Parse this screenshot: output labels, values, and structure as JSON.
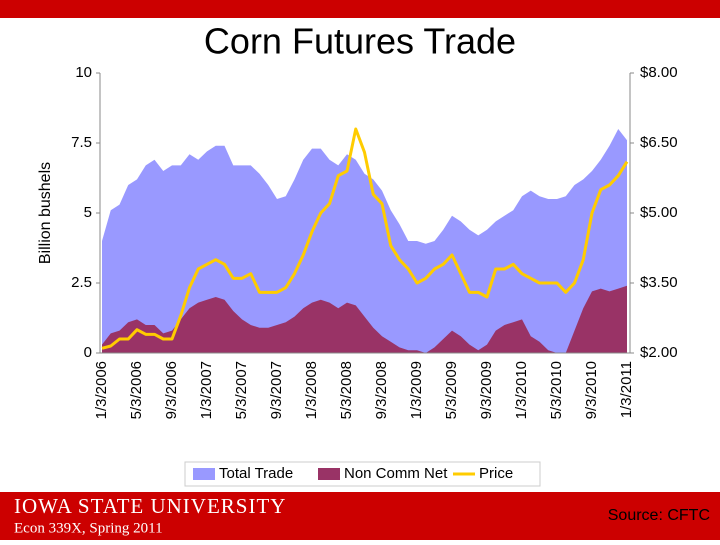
{
  "chart_data": {
    "type": "area",
    "title": "Corn Futures Trade",
    "y_label": "Billion bushels",
    "categories": [
      "1/3/2006",
      null,
      null,
      null,
      "5/3/2006",
      null,
      null,
      null,
      "9/3/2006",
      null,
      null,
      null,
      "1/3/2007",
      null,
      null,
      null,
      "5/3/2007",
      null,
      null,
      null,
      "9/3/2007",
      null,
      null,
      null,
      "1/3/2008",
      null,
      null,
      null,
      "5/3/2008",
      null,
      null,
      null,
      "9/3/2008",
      null,
      null,
      null,
      "1/3/2009",
      null,
      null,
      null,
      "5/3/2009",
      null,
      null,
      null,
      "9/3/2009",
      null,
      null,
      null,
      "1/3/2010",
      null,
      null,
      null,
      "5/3/2010",
      null,
      null,
      null,
      "9/3/2010",
      null,
      null,
      null,
      "1/3/2011"
    ],
    "series": [
      {
        "name": "Total Trade",
        "color": "#9999ff",
        "kind": "area",
        "values": [
          4.0,
          5.1,
          5.3,
          6.0,
          6.2,
          6.7,
          6.9,
          6.5,
          6.7,
          6.7,
          7.1,
          6.9,
          7.2,
          7.4,
          7.4,
          6.7,
          6.7,
          6.7,
          6.4,
          6.0,
          5.5,
          5.6,
          6.2,
          6.9,
          7.3,
          7.3,
          6.9,
          6.7,
          7.1,
          6.9,
          6.4,
          6.2,
          5.8,
          5.1,
          4.6,
          4.0,
          4.0,
          3.9,
          4.0,
          4.4,
          4.9,
          4.7,
          4.4,
          4.2,
          4.4,
          4.7,
          4.9,
          5.1,
          5.6,
          5.8,
          5.6,
          5.5,
          5.5,
          5.6,
          6.0,
          6.2,
          6.5,
          6.9,
          7.4,
          8.0,
          7.6
        ]
      },
      {
        "name": "Non Comm Net",
        "color": "#993366",
        "kind": "area",
        "values": [
          0.3,
          0.7,
          0.8,
          1.1,
          1.2,
          1.0,
          1.0,
          0.7,
          0.8,
          1.2,
          1.6,
          1.8,
          1.9,
          2.0,
          1.9,
          1.5,
          1.2,
          1.0,
          0.9,
          0.9,
          1.0,
          1.1,
          1.3,
          1.6,
          1.8,
          1.9,
          1.8,
          1.6,
          1.8,
          1.7,
          1.3,
          0.9,
          0.6,
          0.4,
          0.2,
          0.1,
          0.1,
          0.0,
          0.2,
          0.5,
          0.8,
          0.6,
          0.3,
          0.1,
          0.3,
          0.8,
          1.0,
          1.1,
          1.2,
          0.6,
          0.4,
          0.1,
          0.0,
          0.0,
          0.8,
          1.6,
          2.2,
          2.3,
          2.2,
          2.3,
          2.4
        ]
      },
      {
        "name": "Price",
        "color": "#ffcc00",
        "kind": "line",
        "axis": "y2",
        "values": [
          2.1,
          2.15,
          2.3,
          2.3,
          2.5,
          2.4,
          2.4,
          2.3,
          2.3,
          2.8,
          3.4,
          3.8,
          3.9,
          4.0,
          3.9,
          3.6,
          3.6,
          3.7,
          3.3,
          3.3,
          3.3,
          3.4,
          3.7,
          4.1,
          4.6,
          5.0,
          5.2,
          5.8,
          5.9,
          6.8,
          6.3,
          5.4,
          5.2,
          4.3,
          4.0,
          3.8,
          3.5,
          3.6,
          3.8,
          3.9,
          4.1,
          3.7,
          3.3,
          3.3,
          3.2,
          3.8,
          3.8,
          3.9,
          3.7,
          3.6,
          3.5,
          3.5,
          3.5,
          3.3,
          3.5,
          4.0,
          5.0,
          5.5,
          5.6,
          5.8,
          6.1
        ]
      }
    ],
    "ylim": [
      0,
      10
    ],
    "yticks": [
      0,
      2.5,
      5,
      7.5,
      10
    ],
    "y2lim": [
      2,
      8
    ],
    "y2ticks": [
      {
        "value": 2,
        "label": "$2.00"
      },
      {
        "value": 3.5,
        "label": "$3.50"
      },
      {
        "value": 5,
        "label": "$5.00"
      },
      {
        "value": 6.5,
        "label": "$6.50"
      },
      {
        "value": 8,
        "label": "$8.00"
      }
    ],
    "legend": "bottom"
  },
  "footer": {
    "university": "IOWA STATE UNIVERSITY",
    "course": "Econ 339X, Spring 2011",
    "source": "Source: CFTC"
  }
}
